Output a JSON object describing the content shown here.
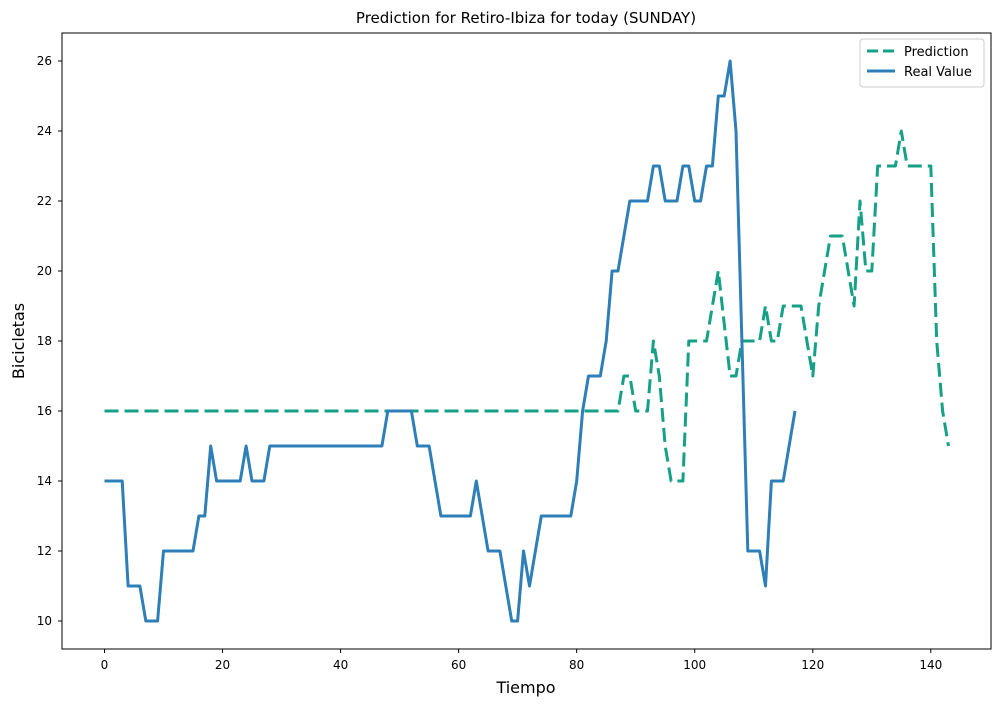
{
  "chart_data": {
    "type": "line",
    "title": "Prediction for Retiro-Ibiza for today (SUNDAY)",
    "xlabel": "Tiempo",
    "ylabel": "Bicicletas",
    "xlim": [
      -7.2,
      150.2
    ],
    "ylim": [
      9.2,
      26.8
    ],
    "xticks": [
      0,
      20,
      40,
      60,
      80,
      100,
      120,
      140
    ],
    "yticks": [
      10,
      12,
      14,
      16,
      18,
      20,
      22,
      24,
      26
    ],
    "grid": false,
    "legend": "top-right",
    "series": [
      {
        "name": "Prediction",
        "color": "#16a085",
        "style": "dashed",
        "points": [
          [
            0,
            16
          ],
          [
            87,
            16
          ],
          [
            88,
            17
          ],
          [
            89,
            17
          ],
          [
            90,
            16
          ],
          [
            92,
            16
          ],
          [
            93,
            18
          ],
          [
            94,
            17
          ],
          [
            95,
            15
          ],
          [
            96,
            14
          ],
          [
            98,
            14
          ],
          [
            99,
            18
          ],
          [
            102,
            18
          ],
          [
            104,
            20
          ],
          [
            106,
            17
          ],
          [
            107,
            17
          ],
          [
            108,
            18
          ],
          [
            111,
            18
          ],
          [
            112,
            19
          ],
          [
            113,
            18
          ],
          [
            114,
            18
          ],
          [
            115,
            19
          ],
          [
            118,
            19
          ],
          [
            120,
            17
          ],
          [
            121,
            19
          ],
          [
            123,
            21
          ],
          [
            125,
            21
          ],
          [
            127,
            19
          ],
          [
            128,
            22
          ],
          [
            129,
            20
          ],
          [
            130,
            20
          ],
          [
            131,
            23
          ],
          [
            134,
            23
          ],
          [
            135,
            24
          ],
          [
            136,
            23
          ],
          [
            140,
            23
          ],
          [
            141,
            18
          ],
          [
            142,
            16
          ],
          [
            143,
            15
          ]
        ]
      },
      {
        "name": "Real Value",
        "color": "#2e7fb8",
        "style": "solid",
        "points": [
          [
            0,
            14
          ],
          [
            3,
            14
          ],
          [
            4,
            11
          ],
          [
            6,
            11
          ],
          [
            7,
            10
          ],
          [
            9,
            10
          ],
          [
            10,
            12
          ],
          [
            15,
            12
          ],
          [
            16,
            13
          ],
          [
            17,
            13
          ],
          [
            18,
            15
          ],
          [
            19,
            14
          ],
          [
            23,
            14
          ],
          [
            24,
            15
          ],
          [
            25,
            14
          ],
          [
            27,
            14
          ],
          [
            28,
            15
          ],
          [
            47,
            15
          ],
          [
            48,
            16
          ],
          [
            52,
            16
          ],
          [
            53,
            15
          ],
          [
            55,
            15
          ],
          [
            57,
            13
          ],
          [
            62,
            13
          ],
          [
            63,
            14
          ],
          [
            65,
            12
          ],
          [
            67,
            12
          ],
          [
            69,
            10
          ],
          [
            70,
            10
          ],
          [
            71,
            12
          ],
          [
            72,
            11
          ],
          [
            74,
            13
          ],
          [
            79,
            13
          ],
          [
            80,
            14
          ],
          [
            81,
            16
          ],
          [
            82,
            17
          ],
          [
            84,
            17
          ],
          [
            85,
            18
          ],
          [
            86,
            20
          ],
          [
            87,
            20
          ],
          [
            89,
            22
          ],
          [
            92,
            22
          ],
          [
            93,
            23
          ],
          [
            94,
            23
          ],
          [
            95,
            22
          ],
          [
            97,
            22
          ],
          [
            98,
            23
          ],
          [
            99,
            23
          ],
          [
            100,
            22
          ],
          [
            101,
            22
          ],
          [
            102,
            23
          ],
          [
            103,
            23
          ],
          [
            104,
            25
          ],
          [
            105,
            25
          ],
          [
            106,
            26
          ],
          [
            107,
            24
          ],
          [
            109,
            12
          ],
          [
            111,
            12
          ],
          [
            112,
            11
          ],
          [
            113,
            14
          ],
          [
            115,
            14
          ],
          [
            117,
            16
          ]
        ]
      }
    ]
  }
}
